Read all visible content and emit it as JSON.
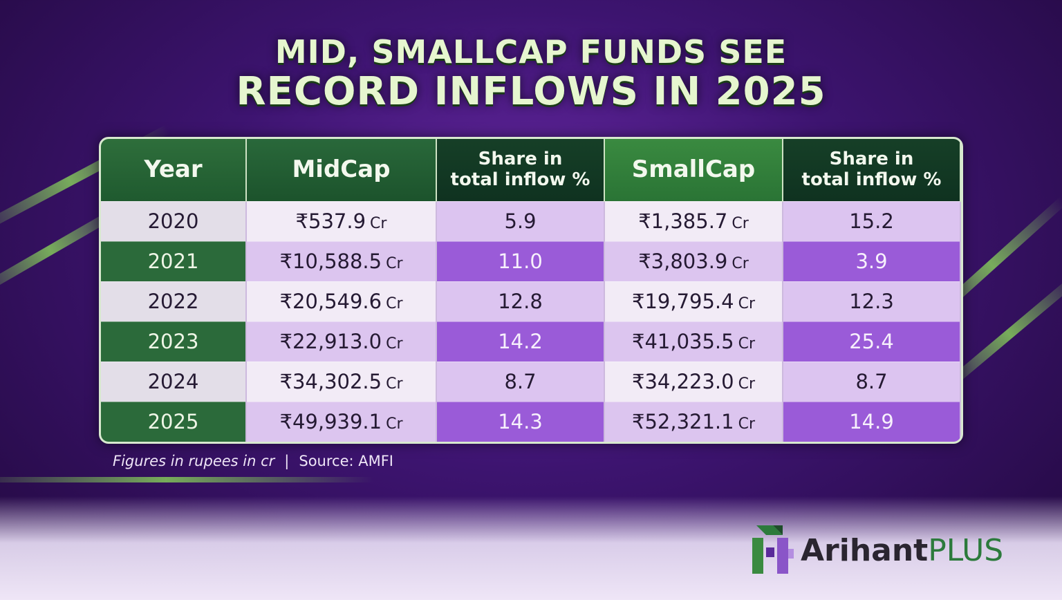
{
  "title": {
    "line1": "MID, SMALLCAP FUNDS SEE",
    "line2": "RECORD INFLOWS IN 2025"
  },
  "colors": {
    "green": "#2b6a3a",
    "purple": "#9a5bd8",
    "lavender": "#dcc5ef"
  },
  "chart_data": {
    "type": "table",
    "columns": [
      "Year",
      "MidCap",
      "Share in total inflow %",
      "SmallCap",
      "Share in total inflow %"
    ],
    "currency_symbol": "₹",
    "unit_suffix": "Cr",
    "rows": [
      {
        "year": "2020",
        "midcap": "537.9",
        "mid_share": "5.9",
        "smallcap": "1,385.7",
        "small_share": "15.2"
      },
      {
        "year": "2021",
        "midcap": "10,588.5",
        "mid_share": "11.0",
        "smallcap": "3,803.9",
        "small_share": "3.9"
      },
      {
        "year": "2022",
        "midcap": "20,549.6",
        "mid_share": "12.8",
        "smallcap": "19,795.4",
        "small_share": "12.3"
      },
      {
        "year": "2023",
        "midcap": "22,913.0",
        "mid_share": "14.2",
        "smallcap": "41,035.5",
        "small_share": "25.4"
      },
      {
        "year": "2024",
        "midcap": "34,302.5",
        "mid_share": "8.7",
        "smallcap": "34,223.0",
        "small_share": "8.7"
      },
      {
        "year": "2025",
        "midcap": "49,939.1",
        "mid_share": "14.3",
        "smallcap": "52,321.1",
        "small_share": "14.9"
      }
    ]
  },
  "headers": {
    "year": "Year",
    "midcap": "MidCap",
    "share_line1": "Share in",
    "share_line2": "total inflow %",
    "smallcap": "SmallCap"
  },
  "footnote": {
    "note": "Figures in rupees in cr",
    "separator": "|",
    "source": "Source: AMFI"
  },
  "logo": {
    "brand": "Arihant",
    "suffix": "PLUS"
  }
}
